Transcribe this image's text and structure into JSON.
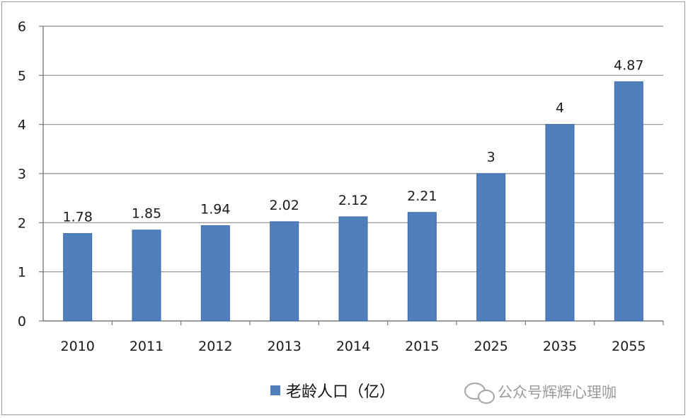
{
  "chart_data": {
    "type": "bar",
    "categories": [
      "2010",
      "2011",
      "2012",
      "2013",
      "2014",
      "2015",
      "2025",
      "2035",
      "2055"
    ],
    "series": [
      {
        "name": "老龄人口（亿）",
        "values": [
          1.78,
          1.85,
          1.94,
          2.02,
          2.12,
          2.21,
          3,
          4,
          4.87
        ],
        "color": "#4f7fbd"
      }
    ],
    "data_labels": [
      "1.78",
      "1.85",
      "1.94",
      "2.02",
      "2.12",
      "2.21",
      "3",
      "4",
      "4.87"
    ],
    "yticks": [
      "0",
      "1",
      "2",
      "3",
      "4",
      "5",
      "6"
    ],
    "ylim": [
      0,
      6
    ],
    "grid": "horizontal",
    "legend_position": "bottom",
    "title": "",
    "xlabel": "",
    "ylabel": ""
  },
  "watermark": {
    "text": "公众号辉辉心理咖",
    "icon": "wechat-icon"
  }
}
